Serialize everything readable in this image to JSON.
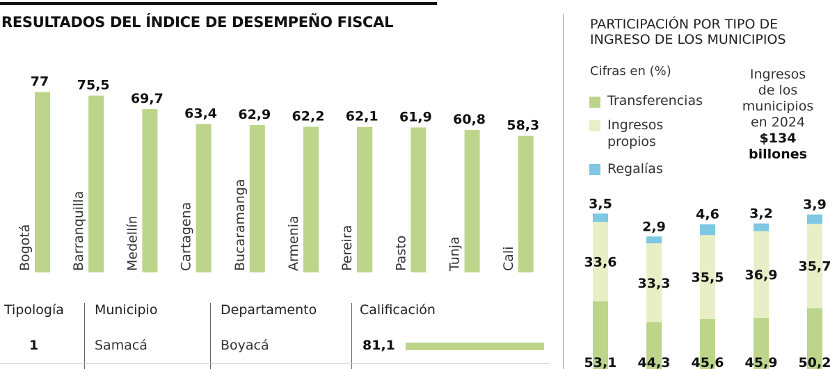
{
  "left_title": "RESULTADOS DEL ÍNDICE DE DESEMPEÑO FISCAL",
  "right_title_line1": "PARTICIPACIÓN POR TIPO DE",
  "right_title_line2": "INGRESO DE LOS MUNICIPIOS",
  "right_subtitle": "Cifras en (%)",
  "legend": [
    {
      "label": "Transferencias",
      "color": "#bcd58a"
    },
    {
      "label": "Ingresos propios",
      "color": "#e8efc6"
    },
    {
      "label": "Regalías",
      "color": "#7ec8e3"
    }
  ],
  "total_note": {
    "line1": "Ingresos",
    "line2": "de los",
    "line3": "municipios",
    "line4": "en 2024",
    "amount": "$134",
    "unit": "billones"
  },
  "table": {
    "headers": [
      "Tipología",
      "Municipio",
      "Departamento",
      "Calificación"
    ],
    "rows": [
      {
        "tipologia": "1",
        "municipio": "Samacá",
        "departamento": "Boyacá",
        "calificacion": "81,1",
        "value": 81.1
      }
    ]
  },
  "chart_data": [
    {
      "type": "bar",
      "title": "RESULTADOS DEL ÍNDICE DE DESEMPEÑO FISCAL",
      "categories": [
        "Bogotá",
        "Barranquilla",
        "Medellín",
        "Cartagena",
        "Bucaramanga",
        "Armenia",
        "Pereira",
        "Pasto",
        "Tunja",
        "Cali"
      ],
      "values": [
        77,
        75.5,
        69.7,
        63.4,
        62.9,
        62.2,
        62.1,
        61.9,
        60.8,
        58.3
      ],
      "labels": [
        "77",
        "75,5",
        "69,7",
        "63,4",
        "62,9",
        "62,2",
        "62,1",
        "61,9",
        "60,8",
        "58,3"
      ],
      "color": "#bcd58a",
      "ylim": [
        0,
        100
      ]
    },
    {
      "type": "bar",
      "stacked": true,
      "title": "PARTICIPACIÓN POR TIPO DE INGRESO DE LOS MUNICIPIOS",
      "ylabel": "Cifras en (%)",
      "series": [
        {
          "name": "Transferencias",
          "values": [
            53.1,
            44.3,
            45.6,
            45.9,
            50.2
          ],
          "labels": [
            "53,1",
            "44,3",
            "45,6",
            "45,9",
            "50,2"
          ],
          "color": "#bcd58a"
        },
        {
          "name": "Ingresos propios",
          "values": [
            33.6,
            33.3,
            35.5,
            36.9,
            35.7
          ],
          "labels": [
            "33,6",
            "33,3",
            "35,5",
            "36,9",
            "35,7"
          ],
          "color": "#e8efc6"
        },
        {
          "name": "Regalías",
          "values": [
            3.5,
            2.9,
            4.6,
            3.2,
            3.9
          ],
          "labels": [
            "3,5",
            "2,9",
            "4,6",
            "3,2",
            "3,9"
          ],
          "color": "#7ec8e3"
        }
      ],
      "legend": "top-left"
    }
  ]
}
